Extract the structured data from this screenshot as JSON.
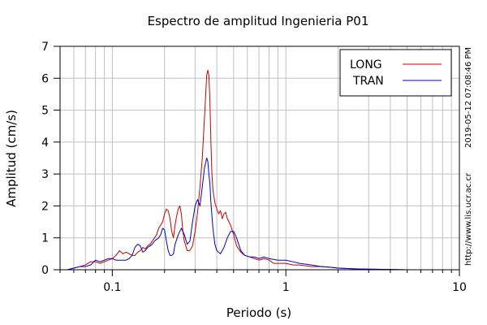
{
  "chart_data": {
    "type": "line",
    "title": "Espectro de amplitud Ingenieria P01",
    "xlabel": "Periodo (s)",
    "ylabel": "Amplitud (cm/s)",
    "x_scale": "log",
    "xlim": [
      0.05,
      10
    ],
    "ylim": [
      0,
      7
    ],
    "x_ticks": [
      0.1,
      1,
      10
    ],
    "x_tick_labels": [
      "0.1",
      "1",
      "10"
    ],
    "y_ticks": [
      0,
      1,
      2,
      3,
      4,
      5,
      6,
      7
    ],
    "y_tick_labels": [
      "0",
      "1",
      "2",
      "3",
      "4",
      "5",
      "6",
      "7"
    ],
    "grid": true,
    "legend_position": "top-right",
    "timestamp_text": "2019-05-12 07:08:46 PM",
    "url_text": "http://www.lis.ucr.ac.cr",
    "series": [
      {
        "name": "LONG",
        "color": "#cc0000",
        "x": [
          0.055,
          0.06,
          0.065,
          0.07,
          0.075,
          0.08,
          0.085,
          0.09,
          0.095,
          0.1,
          0.105,
          0.11,
          0.115,
          0.12,
          0.125,
          0.13,
          0.135,
          0.14,
          0.145,
          0.15,
          0.155,
          0.16,
          0.165,
          0.17,
          0.175,
          0.18,
          0.185,
          0.19,
          0.195,
          0.2,
          0.205,
          0.21,
          0.215,
          0.22,
          0.225,
          0.23,
          0.235,
          0.24,
          0.245,
          0.25,
          0.255,
          0.26,
          0.27,
          0.28,
          0.29,
          0.3,
          0.31,
          0.32,
          0.33,
          0.34,
          0.35,
          0.355,
          0.36,
          0.365,
          0.37,
          0.375,
          0.38,
          0.39,
          0.4,
          0.41,
          0.42,
          0.43,
          0.44,
          0.45,
          0.46,
          0.48,
          0.5,
          0.52,
          0.55,
          0.58,
          0.62,
          0.66,
          0.7,
          0.75,
          0.8,
          0.85,
          0.9,
          1.0,
          1.1,
          1.2,
          1.4,
          1.6,
          1.8,
          2.0,
          2.5,
          3.0,
          4.0,
          5.0,
          7.0,
          10.0
        ],
        "y": [
          0.0,
          0.05,
          0.1,
          0.15,
          0.25,
          0.25,
          0.2,
          0.25,
          0.3,
          0.35,
          0.45,
          0.6,
          0.5,
          0.55,
          0.5,
          0.45,
          0.45,
          0.55,
          0.6,
          0.7,
          0.65,
          0.75,
          0.8,
          0.9,
          1.0,
          1.1,
          1.3,
          1.4,
          1.5,
          1.75,
          1.9,
          1.85,
          1.6,
          1.2,
          1.0,
          1.4,
          1.7,
          1.9,
          2.0,
          1.75,
          1.2,
          0.9,
          0.6,
          0.6,
          0.75,
          1.2,
          1.8,
          2.6,
          3.5,
          4.8,
          6.1,
          6.25,
          6.1,
          5.3,
          4.0,
          3.0,
          2.5,
          2.1,
          1.9,
          1.75,
          1.85,
          1.6,
          1.75,
          1.8,
          1.6,
          1.4,
          1.1,
          0.75,
          0.55,
          0.45,
          0.4,
          0.35,
          0.3,
          0.35,
          0.3,
          0.2,
          0.2,
          0.2,
          0.15,
          0.15,
          0.1,
          0.1,
          0.08,
          0.05,
          0.03,
          0.02,
          0.01,
          0.0,
          0.0,
          0.0
        ]
      },
      {
        "name": "TRAN",
        "color": "#0000cc",
        "x": [
          0.055,
          0.06,
          0.065,
          0.07,
          0.075,
          0.08,
          0.085,
          0.09,
          0.095,
          0.1,
          0.105,
          0.11,
          0.115,
          0.12,
          0.125,
          0.13,
          0.135,
          0.14,
          0.145,
          0.15,
          0.155,
          0.16,
          0.165,
          0.17,
          0.175,
          0.18,
          0.185,
          0.19,
          0.195,
          0.2,
          0.205,
          0.21,
          0.215,
          0.22,
          0.225,
          0.23,
          0.24,
          0.25,
          0.26,
          0.27,
          0.28,
          0.29,
          0.3,
          0.31,
          0.32,
          0.33,
          0.34,
          0.35,
          0.355,
          0.36,
          0.365,
          0.37,
          0.38,
          0.39,
          0.4,
          0.42,
          0.44,
          0.46,
          0.48,
          0.5,
          0.52,
          0.55,
          0.58,
          0.62,
          0.66,
          0.7,
          0.75,
          0.8,
          0.9,
          1.0,
          1.1,
          1.2,
          1.4,
          1.6,
          1.8,
          2.0,
          2.5,
          3.0,
          4.0,
          5.0,
          7.0,
          10.0
        ],
        "y": [
          0.0,
          0.05,
          0.1,
          0.1,
          0.15,
          0.3,
          0.25,
          0.3,
          0.35,
          0.35,
          0.3,
          0.3,
          0.3,
          0.3,
          0.35,
          0.45,
          0.7,
          0.8,
          0.75,
          0.55,
          0.6,
          0.7,
          0.75,
          0.8,
          0.9,
          0.95,
          1.0,
          1.1,
          1.3,
          1.25,
          0.9,
          0.6,
          0.45,
          0.45,
          0.5,
          0.8,
          1.1,
          1.3,
          1.1,
          0.8,
          0.9,
          1.5,
          2.0,
          2.2,
          2.0,
          2.6,
          3.2,
          3.5,
          3.4,
          3.0,
          2.7,
          2.1,
          1.3,
          0.8,
          0.6,
          0.5,
          0.7,
          1.0,
          1.2,
          1.2,
          1.0,
          0.6,
          0.45,
          0.4,
          0.4,
          0.35,
          0.4,
          0.35,
          0.3,
          0.3,
          0.25,
          0.2,
          0.15,
          0.1,
          0.08,
          0.05,
          0.03,
          0.02,
          0.01,
          0.0,
          0.0,
          0.0
        ]
      }
    ]
  }
}
